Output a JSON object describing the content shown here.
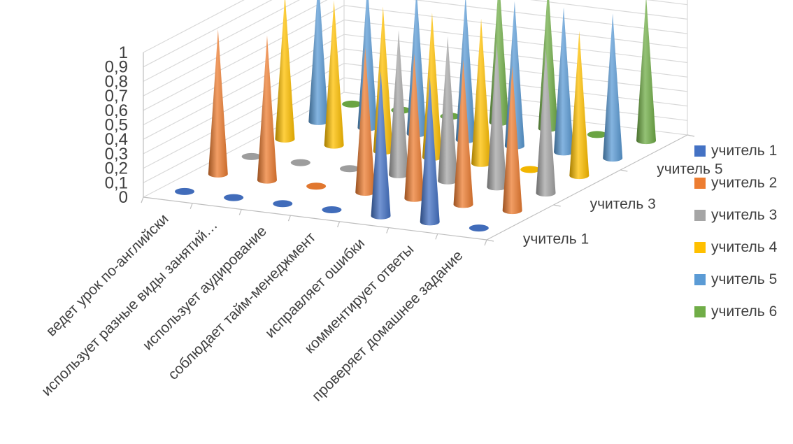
{
  "chart_data": {
    "type": "3d-cone-column",
    "title": "",
    "ylim": [
      0,
      1
    ],
    "y_ticks": [
      "0",
      "0,1",
      "0,2",
      "0,3",
      "0,4",
      "0,5",
      "0,6",
      "0,7",
      "0,8",
      "0,9",
      "1"
    ],
    "categories": [
      "ведет урок по-английски",
      "использует разные виды занятий…",
      "использует аудирование",
      "соблюдает тайм-менеджмент",
      "исправляет ошибки",
      "комментирует ответы",
      "проверяет домашнее задание"
    ],
    "depth_labels": [
      "учитель 1",
      "учитель 3",
      "учитель 5"
    ],
    "series": [
      {
        "name": "учитель 1",
        "color": "#4472C4",
        "values": [
          0,
          0,
          0,
          0,
          1,
          1,
          0
        ]
      },
      {
        "name": "учитель 2",
        "color": "#ED7D31",
        "values": [
          1,
          1,
          0,
          1,
          1,
          1,
          1
        ]
      },
      {
        "name": "учитель 3",
        "color": "#A5A5A5",
        "values": [
          0,
          0,
          0,
          1,
          1,
          1,
          1
        ]
      },
      {
        "name": "учитель 4",
        "color": "#FFC000",
        "values": [
          1,
          1,
          1,
          1,
          1,
          0,
          1
        ]
      },
      {
        "name": "учитель 5",
        "color": "#5B9BD5",
        "values": [
          1,
          1,
          1,
          1,
          1,
          1,
          1
        ]
      },
      {
        "name": "учитель 6",
        "color": "#70AD47",
        "values": [
          0,
          0,
          0,
          1,
          1,
          0,
          1
        ]
      }
    ],
    "legend_position": "right",
    "grid": true
  },
  "legend": {
    "items": [
      {
        "label": "учитель 1",
        "color": "#4472C4"
      },
      {
        "label": "учитель 2",
        "color": "#ED7D31"
      },
      {
        "label": "учитель 3",
        "color": "#A5A5A5"
      },
      {
        "label": "учитель 4",
        "color": "#FFC000"
      },
      {
        "label": "учитель 5",
        "color": "#5B9BD5"
      },
      {
        "label": "учитель 6",
        "color": "#70AD47"
      }
    ]
  }
}
